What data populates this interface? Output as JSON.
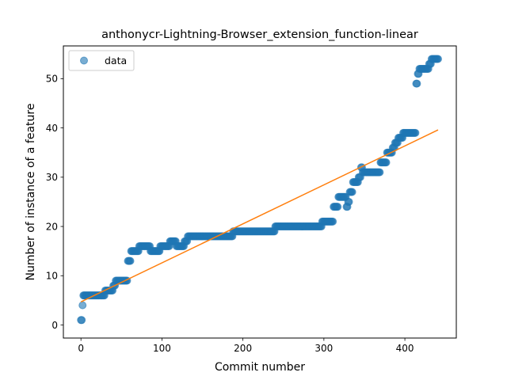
{
  "chart_data": {
    "type": "scatter",
    "title": "anthonycr-Lightning-Browser_extension_function-linear",
    "xlabel": "Commit number",
    "ylabel": "Number of instance of a feature",
    "xlim": [
      -21.7,
      463.5
    ],
    "ylim": [
      -2.65,
      56.65
    ],
    "xticks": [
      0,
      100,
      200,
      300,
      400
    ],
    "yticks": [
      0,
      10,
      20,
      30,
      40,
      50
    ],
    "grid": false,
    "legend": {
      "placement": "top-left",
      "entries": [
        "data"
      ]
    },
    "colors": {
      "scatter": "#1f77b4",
      "fit": "#ff7f0e"
    },
    "steps": [
      [
        0,
        1
      ],
      [
        2,
        4
      ],
      [
        3,
        6
      ],
      [
        30,
        7
      ],
      [
        40,
        8
      ],
      [
        43,
        9
      ],
      [
        58,
        13
      ],
      [
        62,
        15
      ],
      [
        72,
        16
      ],
      [
        86,
        15
      ],
      [
        98,
        16
      ],
      [
        110,
        17
      ],
      [
        118,
        16
      ],
      [
        128,
        17
      ],
      [
        132,
        18
      ],
      [
        188,
        19
      ],
      [
        240,
        20
      ],
      [
        298,
        21
      ],
      [
        312,
        24
      ],
      [
        318,
        26
      ],
      [
        328,
        24
      ],
      [
        330,
        25
      ],
      [
        332,
        27
      ],
      [
        336,
        29
      ],
      [
        343,
        30
      ],
      [
        346,
        32
      ],
      [
        348,
        31
      ],
      [
        370,
        33
      ],
      [
        378,
        35
      ],
      [
        385,
        36
      ],
      [
        388,
        37
      ],
      [
        392,
        38
      ],
      [
        398,
        39
      ],
      [
        414,
        49
      ],
      [
        416,
        51
      ],
      [
        418,
        52
      ],
      [
        430,
        53
      ],
      [
        433,
        54
      ]
    ],
    "last_x": 441,
    "fit_line": {
      "x": [
        0,
        441
      ],
      "y": [
        4.7,
        39.6
      ]
    }
  }
}
